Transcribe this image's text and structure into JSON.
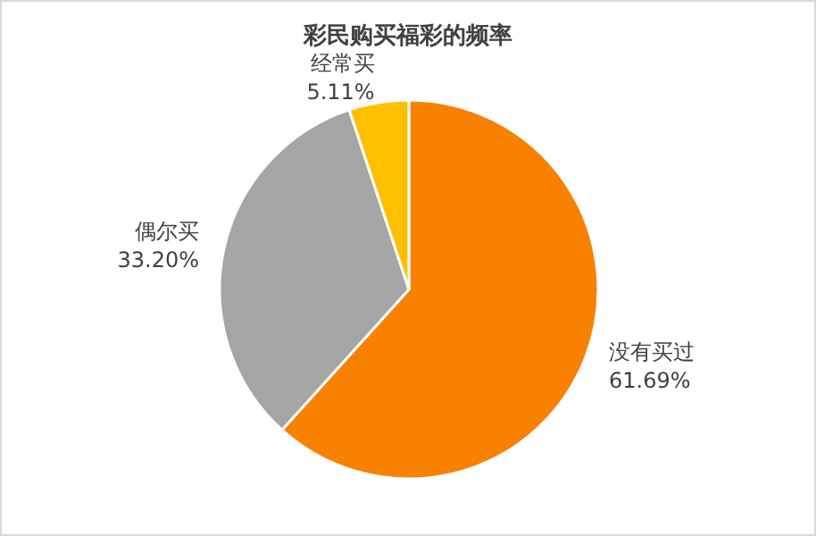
{
  "chart_data": {
    "type": "pie",
    "title": "彩民购买福彩的频率",
    "categories": [
      "没有买过",
      "偶尔买",
      "经常买"
    ],
    "values": [
      61.69,
      33.2,
      5.11
    ],
    "colors": [
      "#f98100",
      "#a5a5a5",
      "#ffc000"
    ],
    "value_labels": [
      "61.69%",
      "33.20%",
      "5.11%"
    ]
  }
}
